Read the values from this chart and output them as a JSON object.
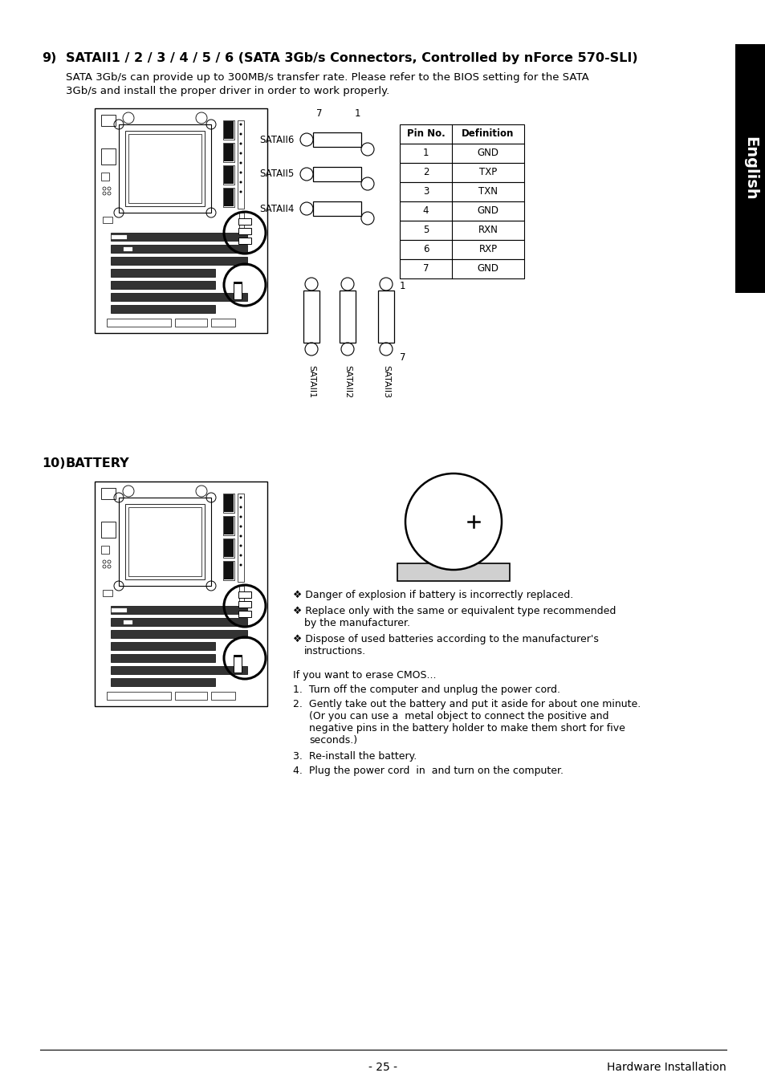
{
  "page_bg": "#ffffff",
  "sidebar_color": "#000000",
  "sidebar_text": "English",
  "section9_num": "9)",
  "section9_title": "SATAII1 / 2 / 3 / 4 / 5 / 6 (SATA 3Gb/s Connectors, Controlled by nForce 570-SLI)",
  "section9_desc_line1": "SATA 3Gb/s can provide up to 300MB/s transfer rate. Please refer to the BIOS setting for the SATA",
  "section9_desc_line2": "3Gb/s and install the proper driver in order to work properly.",
  "pin_headers": [
    "Pin No.",
    "Definition"
  ],
  "pin_rows": [
    [
      "1",
      "GND"
    ],
    [
      "2",
      "TXP"
    ],
    [
      "3",
      "TXN"
    ],
    [
      "4",
      "GND"
    ],
    [
      "5",
      "RXN"
    ],
    [
      "6",
      "RXP"
    ],
    [
      "7",
      "GND"
    ]
  ],
  "sataii_right_labels": [
    "SATAII6",
    "SATAII5",
    "SATAII4"
  ],
  "sataii_bottom_labels": [
    "SATAII1",
    "SATAII2",
    "SATAII3"
  ],
  "section10_num": "10)",
  "section10_title": "BATTERY",
  "bullet_symbol": "❖",
  "bullet1": "Danger of explosion if battery is incorrectly replaced.",
  "bullet2a": "Replace only with the same or equivalent type recommended",
  "bullet2b": "by the manufacturer.",
  "bullet3a": "Dispose of used batteries according to the manufacturer's",
  "bullet3b": "instructions.",
  "cmos_intro": "If you want to erase CMOS...",
  "step1": "Turn off the computer and unplug the power cord.",
  "step2a": "Gently take out the battery and put it aside for about one minute.",
  "step2b": "(Or you can use a  metal object to connect the positive and",
  "step2c": "negative pins in the battery holder to make them short for five",
  "step2d": "seconds.)",
  "step3": "Re-install the battery.",
  "step4": "Plug the power cord  in  and turn on the computer.",
  "footer_center": "- 25 -",
  "footer_right": "Hardware Installation"
}
